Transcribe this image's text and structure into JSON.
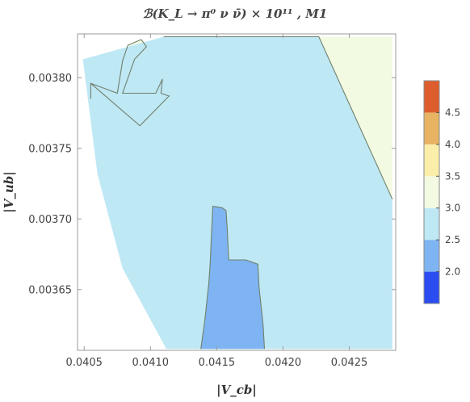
{
  "chart_data": {
    "type": "contour",
    "title": "ℬ(K_L → π⁰ ν ν̄) × 10¹¹ , M1",
    "xlabel": "|V_cb|",
    "ylabel": "|V_ub|",
    "xlim": [
      0.04045,
      0.04285
    ],
    "ylim": [
      0.003607,
      0.003831
    ],
    "xticks": [
      0.0405,
      0.041,
      0.0415,
      0.042,
      0.0425
    ],
    "xtick_labels": [
      "0.0405",
      "0.0410",
      "0.0415",
      "0.0420",
      "0.0425"
    ],
    "yticks": [
      0.00365,
      0.0037,
      0.00375,
      0.0038
    ],
    "ytick_labels": [
      "0.00365",
      "0.00370",
      "0.00375",
      "0.00380"
    ],
    "colorbar": {
      "levels": [
        1.5,
        2.0,
        2.5,
        3.0,
        3.5,
        4.0,
        4.5,
        5.0
      ],
      "labels": [
        "2.0",
        "2.5",
        "3.0",
        "3.5",
        "4.0",
        "4.5"
      ],
      "label_values": [
        2.0,
        2.5,
        3.0,
        3.5,
        4.0,
        4.5
      ],
      "colors": [
        "#2a4cf0",
        "#7fb4f2",
        "#bfe8f5",
        "#f3fae2",
        "#fbeeaa",
        "#e8b463",
        "#dd5e2c"
      ]
    },
    "regions": [
      {
        "range": [
          3.0,
          3.5
        ],
        "color": "#f3fae2",
        "points": [
          [
            0.04049,
            0.003829
          ],
          [
            0.0411,
            0.003829
          ],
          [
            0.04227,
            0.003829
          ],
          [
            0.042825,
            0.003714
          ],
          [
            0.042825,
            0.003829
          ],
          [
            0.04049,
            0.003829
          ],
          [
            0.04049,
            0.003813
          ],
          [
            0.04055,
            0.003796
          ],
          [
            0.04055,
            0.003785
          ],
          [
            0.04092,
            0.003766
          ],
          [
            0.04114,
            0.003787
          ],
          [
            0.04108,
            0.003789
          ],
          [
            0.04109,
            0.003799
          ],
          [
            0.04104,
            0.003789
          ],
          [
            0.04079,
            0.003789
          ],
          [
            0.04088,
            0.003813
          ],
          [
            0.04097,
            0.003822
          ],
          [
            0.04093,
            0.003827
          ],
          [
            0.04083,
            0.003823
          ],
          [
            0.04079,
            0.003812
          ],
          [
            0.04075,
            0.003789
          ],
          [
            0.04055,
            0.003796
          ],
          [
            0.04049,
            0.003813
          ]
        ]
      },
      {
        "range": [
          2.5,
          3.0
        ],
        "color": "#bfe8f5",
        "points": [
          [
            0.04049,
            0.003813
          ],
          [
            0.0411,
            0.003829
          ],
          [
            0.04227,
            0.003829
          ],
          [
            0.042825,
            0.003714
          ],
          [
            0.042825,
            0.003608
          ],
          [
            0.04112,
            0.003608
          ],
          [
            0.04079,
            0.003665
          ],
          [
            0.0406,
            0.003732
          ],
          [
            0.04049,
            0.003813
          ]
        ]
      },
      {
        "range": [
          2.0,
          2.5
        ],
        "color": "#7fb4f2",
        "points": [
          [
            0.04138,
            0.003608
          ],
          [
            0.04186,
            0.003608
          ],
          [
            0.04185,
            0.003625
          ],
          [
            0.04182,
            0.003651
          ],
          [
            0.04181,
            0.003668
          ],
          [
            0.04172,
            0.003671
          ],
          [
            0.04159,
            0.003671
          ],
          [
            0.04158,
            0.003692
          ],
          [
            0.04157,
            0.003706
          ],
          [
            0.04154,
            0.003708
          ],
          [
            0.04147,
            0.003709
          ],
          [
            0.04146,
            0.003688
          ],
          [
            0.04145,
            0.003668
          ],
          [
            0.04144,
            0.003654
          ],
          [
            0.04141,
            0.003628
          ],
          [
            0.04138,
            0.003608
          ]
        ]
      }
    ],
    "contour_lines": [
      {
        "level": 3.0,
        "points": [
          [
            0.0411,
            0.003829
          ],
          [
            0.04227,
            0.003829
          ],
          [
            0.042825,
            0.003714
          ]
        ]
      },
      {
        "level": 3.0,
        "points": [
          [
            0.04055,
            0.003785
          ],
          [
            0.04055,
            0.003796
          ],
          [
            0.04092,
            0.003766
          ],
          [
            0.04114,
            0.003787
          ],
          [
            0.04108,
            0.003789
          ],
          [
            0.04109,
            0.003799
          ],
          [
            0.04104,
            0.003789
          ],
          [
            0.04079,
            0.003789
          ],
          [
            0.04088,
            0.003813
          ],
          [
            0.04097,
            0.003822
          ],
          [
            0.04093,
            0.003827
          ],
          [
            0.04083,
            0.003823
          ],
          [
            0.04079,
            0.003812
          ],
          [
            0.04075,
            0.003789
          ],
          [
            0.04055,
            0.003796
          ]
        ]
      },
      {
        "level": 2.5,
        "points": [
          [
            0.04138,
            0.003608
          ],
          [
            0.04141,
            0.003628
          ],
          [
            0.04144,
            0.003654
          ],
          [
            0.04145,
            0.003668
          ],
          [
            0.04146,
            0.003688
          ],
          [
            0.04147,
            0.003709
          ],
          [
            0.04154,
            0.003708
          ],
          [
            0.04157,
            0.003706
          ],
          [
            0.04158,
            0.003692
          ],
          [
            0.04159,
            0.003671
          ],
          [
            0.04172,
            0.003671
          ],
          [
            0.04181,
            0.003668
          ],
          [
            0.04182,
            0.003651
          ],
          [
            0.04185,
            0.003625
          ],
          [
            0.04186,
            0.003608
          ]
        ]
      }
    ],
    "grid": false
  }
}
